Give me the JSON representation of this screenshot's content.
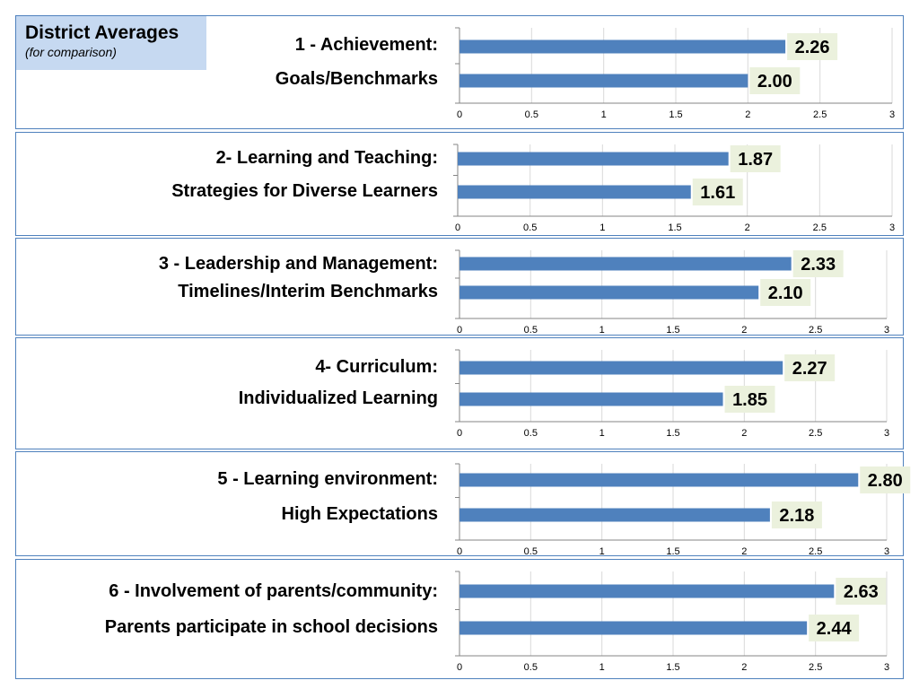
{
  "legend": {
    "title": "District Averages",
    "subtitle": "(for comparison)"
  },
  "colors": {
    "bar": "#4f81bd",
    "label_bg": "#ebf1dd",
    "border": "#4f81bd",
    "grid": "#d9d9d9"
  },
  "chart_data": [
    {
      "type": "bar",
      "orientation": "horizontal",
      "categories": [
        "1 - Achievement:",
        "Goals/Benchmarks"
      ],
      "values": [
        2.26,
        2.0
      ],
      "value_labels": [
        "2.26",
        "2.00"
      ],
      "xlim": [
        0,
        3
      ],
      "x_ticks": [
        "0",
        "0.5",
        "1",
        "1.5",
        "2",
        "2.5",
        "3"
      ],
      "grid": true
    },
    {
      "type": "bar",
      "orientation": "horizontal",
      "categories": [
        "2- Learning and Teaching:",
        "Strategies for Diverse Learners"
      ],
      "values": [
        1.87,
        1.61
      ],
      "value_labels": [
        "1.87",
        "1.61"
      ],
      "xlim": [
        0,
        3
      ],
      "x_ticks": [
        "0",
        "0.5",
        "1",
        "1.5",
        "2",
        "2.5",
        "3"
      ],
      "grid": true
    },
    {
      "type": "bar",
      "orientation": "horizontal",
      "categories": [
        "3 - Leadership and Management:",
        "Timelines/Interim Benchmarks"
      ],
      "values": [
        2.33,
        2.1
      ],
      "value_labels": [
        "2.33",
        "2.10"
      ],
      "xlim": [
        0,
        3
      ],
      "x_ticks": [
        "0",
        "0.5",
        "1",
        "1.5",
        "2",
        "2.5",
        "3"
      ],
      "grid": true
    },
    {
      "type": "bar",
      "orientation": "horizontal",
      "categories": [
        "4- Curriculum:",
        "Individualized Learning"
      ],
      "values": [
        2.27,
        1.85
      ],
      "value_labels": [
        "2.27",
        "1.85"
      ],
      "xlim": [
        0,
        3
      ],
      "x_ticks": [
        "0",
        "0.5",
        "1",
        "1.5",
        "2",
        "2.5",
        "3"
      ],
      "grid": true
    },
    {
      "type": "bar",
      "orientation": "horizontal",
      "categories": [
        "5 - Learning environment:",
        "High Expectations"
      ],
      "values": [
        2.8,
        2.18
      ],
      "value_labels": [
        "2.80",
        "2.18"
      ],
      "xlim": [
        0,
        3
      ],
      "x_ticks": [
        "0",
        "0.5",
        "1",
        "1.5",
        "2",
        "2.5",
        "3"
      ],
      "grid": true
    },
    {
      "type": "bar",
      "orientation": "horizontal",
      "categories": [
        "6 - Involvement of parents/community:",
        "Parents participate in school decisions"
      ],
      "values": [
        2.63,
        2.44
      ],
      "value_labels": [
        "2.63",
        "2.44"
      ],
      "xlim": [
        0,
        3
      ],
      "x_ticks": [
        "0",
        "0.5",
        "1",
        "1.5",
        "2",
        "2.5",
        "3"
      ],
      "grid": true
    }
  ]
}
